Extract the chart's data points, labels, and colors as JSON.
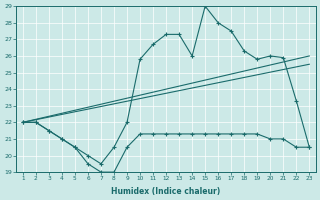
{
  "x_full": [
    1,
    2,
    3,
    4,
    5,
    6,
    7,
    8,
    9,
    10,
    11,
    12,
    13,
    14,
    15,
    16,
    17,
    18,
    19,
    20,
    21,
    22,
    23
  ],
  "line_peak": [
    22,
    22,
    21.5,
    21.0,
    20.5,
    20.0,
    19.5,
    20.5,
    22.0,
    25.8,
    26.7,
    27.3,
    27.3,
    26.0,
    29.0,
    28.0,
    27.5,
    26.3,
    25.8,
    26.0,
    25.9,
    23.3,
    20.5
  ],
  "line_dip": [
    22,
    22,
    21.5,
    21.0,
    20.5,
    19.5,
    19.0,
    19.0,
    20.5,
    21.3,
    21.3,
    21.3,
    21.3,
    21.3,
    21.3,
    21.3,
    21.3,
    21.3,
    21.3,
    21.0,
    21.0,
    20.5,
    20.5
  ],
  "bg_color": "#cce9e7",
  "line_color": "#1a6b6b",
  "xlabel": "Humidex (Indice chaleur)",
  "ylim": [
    19,
    29
  ],
  "xlim": [
    0.5,
    23.5
  ],
  "yticks": [
    19,
    20,
    21,
    22,
    23,
    24,
    25,
    26,
    27,
    28,
    29
  ],
  "xticks": [
    1,
    2,
    3,
    4,
    5,
    6,
    7,
    8,
    9,
    10,
    11,
    12,
    13,
    14,
    15,
    16,
    17,
    18,
    19,
    20,
    21,
    22,
    23
  ]
}
